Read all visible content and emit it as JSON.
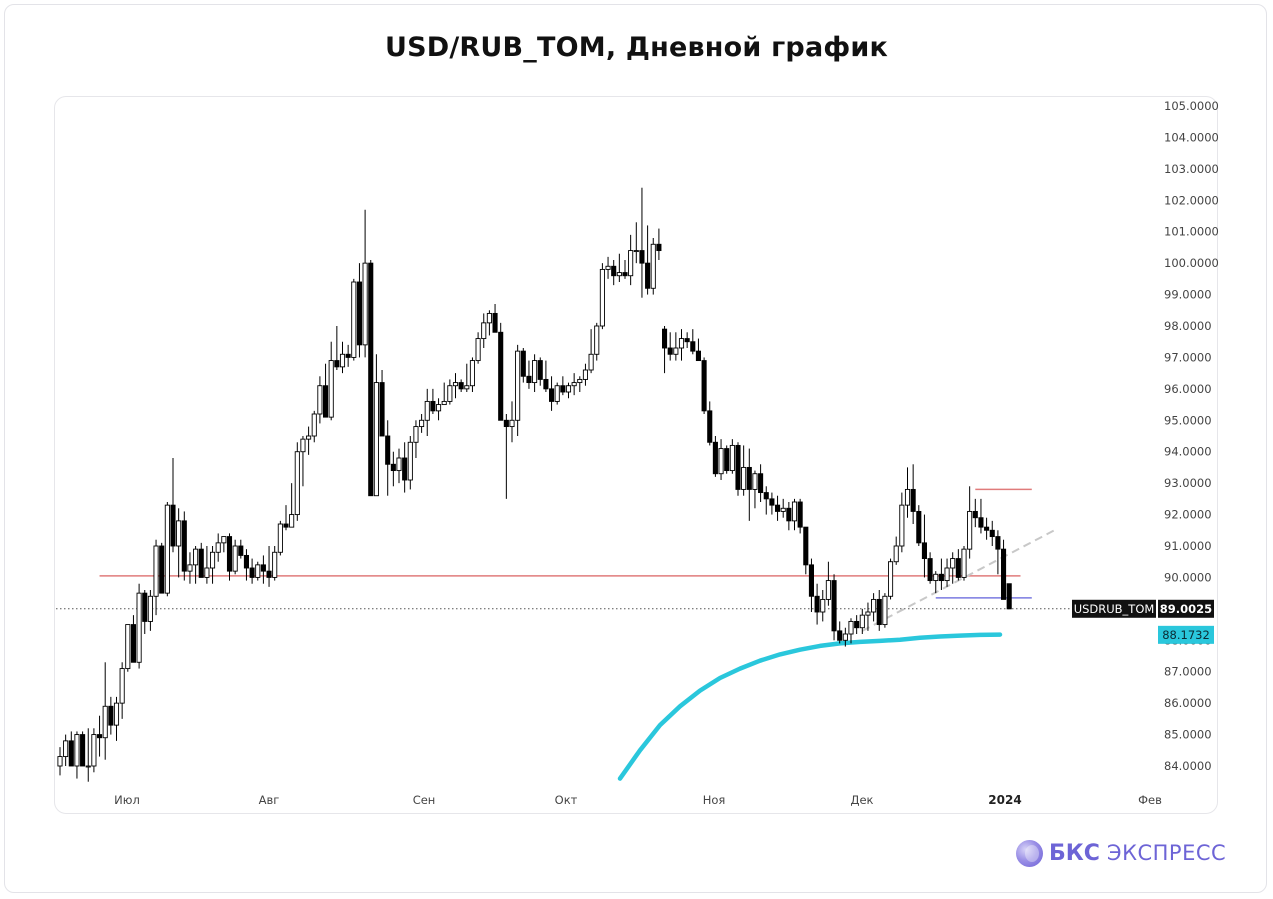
{
  "header": {
    "title": "USD/RUB_TOM, Дневной график"
  },
  "brand": {
    "name_bold": "БКС",
    "name": "ЭКСПРЕСС",
    "logo_icon": "bks-sphere-icon"
  },
  "chart_data": {
    "type": "candlestick",
    "title": "USD/RUB_TOM, Дневной график",
    "ticker": "USDRUB_TOM",
    "y_ticks": [
      "105.0000",
      "104.0000",
      "103.0000",
      "102.0000",
      "101.0000",
      "100.0000",
      "99.0000",
      "98.0000",
      "97.0000",
      "96.0000",
      "95.0000",
      "94.0000",
      "93.0000",
      "92.0000",
      "91.0000",
      "90.0000",
      "89.0000",
      "88.0000",
      "87.0000",
      "86.0000",
      "85.0000",
      "84.0000"
    ],
    "x_ticks": [
      "Июл",
      "Авг",
      "Сен",
      "Окт",
      "Ноя",
      "Дек",
      "2024",
      "Фев"
    ],
    "ylim": [
      83.4,
      105.4
    ],
    "last_price": "89.0025",
    "ma_value": "88.1732",
    "colors": {
      "bull": "#ffffff",
      "bear": "#000000",
      "ma": "#2ac7dc",
      "level": "#e07b7b",
      "range": "#7a7ae0",
      "trend": "#c8c8c8",
      "price_label": "#111111"
    },
    "candles": [
      [
        84.0,
        84.6,
        83.7,
        84.3
      ],
      [
        84.3,
        85.0,
        84.0,
        84.8
      ],
      [
        84.8,
        85.1,
        84.0,
        84.0
      ],
      [
        84.0,
        85.1,
        83.6,
        85.0
      ],
      [
        85.0,
        85.1,
        84.0,
        84.0
      ],
      [
        84.0,
        85.2,
        83.5,
        84.0
      ],
      [
        84.0,
        85.2,
        83.8,
        85.0
      ],
      [
        85.0,
        85.6,
        84.3,
        84.9
      ],
      [
        84.9,
        87.3,
        84.2,
        85.9
      ],
      [
        85.9,
        86.2,
        85.0,
        85.3
      ],
      [
        85.3,
        86.2,
        84.8,
        86.0
      ],
      [
        86.0,
        87.3,
        85.5,
        87.1
      ],
      [
        87.1,
        88.5,
        87.0,
        88.5
      ],
      [
        88.5,
        88.8,
        87.3,
        87.3
      ],
      [
        87.3,
        89.8,
        87.1,
        89.5
      ],
      [
        89.5,
        89.6,
        88.2,
        88.6
      ],
      [
        88.6,
        89.6,
        88.3,
        89.4
      ],
      [
        89.4,
        91.2,
        88.8,
        91.0
      ],
      [
        91.0,
        91.1,
        89.5,
        89.5
      ],
      [
        89.5,
        92.4,
        89.4,
        92.3
      ],
      [
        92.3,
        93.8,
        90.8,
        91.0
      ],
      [
        91.0,
        92.2,
        90.0,
        91.8
      ],
      [
        91.8,
        92.1,
        89.9,
        90.2
      ],
      [
        90.2,
        90.8,
        89.8,
        90.4
      ],
      [
        90.4,
        91.0,
        89.8,
        90.9
      ],
      [
        90.9,
        91.1,
        90.0,
        90.0
      ],
      [
        90.0,
        91.0,
        89.8,
        90.3
      ],
      [
        90.3,
        91.0,
        89.8,
        90.8
      ],
      [
        90.8,
        91.4,
        90.5,
        91.1
      ],
      [
        91.1,
        91.3,
        90.8,
        91.3
      ],
      [
        91.3,
        91.4,
        89.9,
        90.2
      ],
      [
        90.2,
        91.2,
        90.1,
        91.0
      ],
      [
        91.0,
        91.2,
        90.6,
        90.7
      ],
      [
        90.7,
        90.9,
        89.9,
        90.3
      ],
      [
        90.3,
        90.6,
        89.8,
        90.0
      ],
      [
        90.0,
        90.5,
        89.9,
        90.4
      ],
      [
        90.4,
        90.7,
        89.8,
        90.2
      ],
      [
        90.2,
        91.0,
        89.7,
        90.0
      ],
      [
        90.0,
        91.0,
        89.9,
        90.8
      ],
      [
        90.8,
        91.8,
        90.7,
        91.7
      ],
      [
        91.7,
        92.3,
        91.5,
        91.6
      ],
      [
        91.6,
        93.0,
        91.6,
        92.0
      ],
      [
        92.0,
        94.3,
        91.8,
        94.0
      ],
      [
        94.0,
        94.5,
        92.9,
        94.4
      ],
      [
        94.4,
        94.8,
        93.9,
        94.5
      ],
      [
        94.5,
        95.3,
        94.3,
        95.2
      ],
      [
        95.2,
        96.4,
        94.9,
        96.1
      ],
      [
        96.1,
        96.8,
        95.1,
        95.1
      ],
      [
        95.1,
        97.5,
        95.0,
        96.9
      ],
      [
        96.9,
        98.0,
        96.6,
        96.7
      ],
      [
        96.7,
        97.5,
        96.5,
        97.1
      ],
      [
        97.1,
        97.4,
        96.7,
        97.0
      ],
      [
        97.0,
        99.5,
        96.9,
        99.4
      ],
      [
        99.4,
        100.0,
        97.0,
        97.4
      ],
      [
        97.4,
        101.7,
        97.0,
        100.0
      ],
      [
        100.0,
        100.1,
        92.6,
        92.6
      ],
      [
        92.6,
        97.1,
        92.6,
        96.2
      ],
      [
        96.2,
        96.6,
        94.5,
        94.5
      ],
      [
        94.5,
        95.0,
        92.6,
        93.6
      ],
      [
        93.6,
        94.0,
        92.9,
        93.4
      ],
      [
        93.4,
        94.1,
        93.0,
        93.8
      ],
      [
        93.8,
        94.3,
        92.7,
        93.1
      ],
      [
        93.1,
        94.5,
        92.8,
        94.3
      ],
      [
        94.3,
        95.0,
        93.8,
        94.8
      ],
      [
        94.8,
        95.2,
        94.6,
        95.0
      ],
      [
        95.0,
        96.0,
        94.5,
        95.6
      ],
      [
        95.6,
        96.0,
        95.2,
        95.3
      ],
      [
        95.3,
        95.7,
        95.0,
        95.5
      ],
      [
        95.5,
        96.2,
        95.5,
        95.6
      ],
      [
        95.6,
        96.3,
        95.5,
        96.1
      ],
      [
        96.1,
        96.5,
        95.7,
        96.2
      ],
      [
        96.2,
        96.3,
        95.9,
        96.0
      ],
      [
        96.0,
        96.8,
        95.9,
        96.1
      ],
      [
        96.1,
        97.0,
        95.9,
        96.9
      ],
      [
        96.9,
        97.8,
        96.8,
        97.6
      ],
      [
        97.6,
        98.4,
        97.3,
        98.1
      ],
      [
        98.1,
        98.5,
        97.7,
        98.4
      ],
      [
        98.4,
        98.7,
        97.8,
        97.8
      ],
      [
        97.8,
        98.1,
        95.0,
        95.0
      ],
      [
        95.0,
        95.2,
        92.5,
        94.8
      ],
      [
        94.8,
        95.6,
        94.3,
        95.0
      ],
      [
        95.0,
        97.4,
        94.5,
        97.2
      ],
      [
        97.2,
        97.3,
        96.2,
        96.4
      ],
      [
        96.4,
        96.9,
        96.0,
        96.2
      ],
      [
        96.2,
        97.1,
        95.9,
        96.9
      ],
      [
        96.9,
        97.0,
        96.1,
        96.3
      ],
      [
        96.3,
        96.9,
        95.9,
        96.0
      ],
      [
        96.0,
        96.4,
        95.3,
        95.6
      ],
      [
        95.6,
        96.2,
        95.5,
        96.1
      ],
      [
        96.1,
        96.4,
        95.8,
        95.9
      ],
      [
        95.9,
        96.2,
        95.7,
        96.1
      ],
      [
        96.1,
        96.5,
        95.8,
        96.2
      ],
      [
        96.2,
        96.4,
        95.9,
        96.3
      ],
      [
        96.3,
        96.8,
        96.1,
        96.6
      ],
      [
        96.6,
        97.9,
        96.5,
        97.1
      ],
      [
        97.1,
        98.1,
        96.9,
        98.0
      ],
      [
        98.0,
        100.0,
        97.9,
        99.8
      ],
      [
        99.8,
        100.2,
        99.5,
        99.9
      ],
      [
        99.9,
        100.1,
        99.3,
        99.6
      ],
      [
        99.6,
        100.3,
        99.4,
        99.7
      ],
      [
        99.7,
        100.1,
        99.5,
        99.6
      ],
      [
        99.6,
        100.9,
        99.3,
        100.4
      ],
      [
        100.4,
        101.3,
        100.0,
        100.4
      ],
      [
        100.4,
        102.4,
        98.9,
        100.0
      ],
      [
        100.0,
        101.2,
        99.0,
        99.2
      ],
      [
        99.2,
        100.8,
        99.0,
        100.6
      ],
      [
        100.6,
        101.1,
        100.1,
        100.4
      ],
      [
        97.9,
        98.0,
        96.5,
        97.3
      ],
      [
        97.3,
        97.8,
        96.9,
        97.1
      ],
      [
        97.1,
        97.8,
        96.9,
        97.3
      ],
      [
        97.3,
        97.9,
        96.9,
        97.6
      ],
      [
        97.6,
        97.8,
        97.3,
        97.5
      ],
      [
        97.5,
        97.9,
        97.1,
        97.2
      ],
      [
        97.2,
        97.6,
        96.9,
        96.9
      ],
      [
        96.9,
        97.0,
        95.2,
        95.3
      ],
      [
        95.3,
        95.6,
        94.2,
        94.3
      ],
      [
        94.3,
        94.5,
        93.2,
        93.3
      ],
      [
        93.3,
        94.4,
        93.1,
        94.1
      ],
      [
        94.1,
        94.2,
        93.3,
        93.4
      ],
      [
        93.4,
        94.4,
        93.3,
        94.2
      ],
      [
        94.2,
        94.3,
        92.6,
        92.8
      ],
      [
        92.8,
        94.2,
        92.6,
        93.5
      ],
      [
        93.5,
        94.1,
        91.8,
        92.8
      ],
      [
        92.8,
        93.4,
        92.2,
        93.3
      ],
      [
        93.3,
        93.6,
        92.4,
        92.7
      ],
      [
        92.7,
        92.9,
        92.0,
        92.5
      ],
      [
        92.5,
        92.7,
        92.0,
        92.3
      ],
      [
        92.3,
        92.6,
        91.8,
        92.1
      ],
      [
        92.1,
        92.5,
        91.9,
        92.2
      ],
      [
        92.2,
        92.4,
        91.5,
        91.8
      ],
      [
        91.8,
        92.5,
        91.5,
        92.4
      ],
      [
        92.4,
        92.5,
        91.4,
        91.6
      ],
      [
        91.6,
        91.6,
        90.1,
        90.4
      ],
      [
        90.4,
        90.6,
        88.9,
        89.4
      ],
      [
        89.4,
        89.8,
        88.5,
        88.9
      ],
      [
        88.9,
        89.6,
        88.6,
        89.3
      ],
      [
        89.3,
        90.5,
        89.1,
        89.9
      ],
      [
        89.9,
        90.1,
        88.0,
        88.3
      ],
      [
        88.3,
        88.6,
        87.9,
        88.0
      ],
      [
        88.0,
        88.4,
        87.8,
        88.2
      ],
      [
        88.2,
        88.7,
        87.9,
        88.6
      ],
      [
        88.6,
        88.8,
        88.2,
        88.4
      ],
      [
        88.4,
        89.0,
        88.2,
        88.8
      ],
      [
        88.8,
        89.2,
        88.3,
        88.9
      ],
      [
        88.9,
        89.5,
        88.6,
        89.3
      ],
      [
        89.3,
        89.6,
        88.3,
        88.5
      ],
      [
        88.5,
        89.5,
        88.4,
        89.4
      ],
      [
        89.4,
        90.6,
        89.3,
        90.5
      ],
      [
        90.5,
        91.3,
        90.4,
        91.0
      ],
      [
        91.0,
        92.7,
        90.8,
        92.3
      ],
      [
        92.3,
        93.5,
        91.9,
        92.8
      ],
      [
        92.8,
        93.6,
        91.7,
        92.1
      ],
      [
        92.1,
        92.3,
        91.0,
        91.1
      ],
      [
        91.1,
        92.0,
        90.0,
        90.6
      ],
      [
        90.6,
        90.8,
        89.8,
        89.9
      ],
      [
        89.9,
        90.2,
        89.5,
        90.1
      ],
      [
        90.1,
        90.6,
        89.6,
        89.9
      ],
      [
        89.9,
        90.6,
        89.7,
        90.3
      ],
      [
        90.3,
        90.8,
        89.8,
        90.6
      ],
      [
        90.6,
        90.9,
        89.9,
        90.0
      ],
      [
        90.0,
        91.0,
        89.9,
        90.9
      ],
      [
        90.9,
        92.9,
        90.6,
        92.1
      ],
      [
        92.1,
        92.5,
        91.6,
        91.9
      ],
      [
        91.9,
        92.5,
        91.4,
        91.6
      ],
      [
        91.6,
        91.9,
        91.2,
        91.5
      ],
      [
        91.5,
        91.8,
        91.0,
        91.3
      ],
      [
        91.3,
        91.5,
        90.1,
        90.9
      ],
      [
        90.9,
        91.2,
        89.3,
        89.3
      ],
      [
        89.8,
        89.8,
        89.0,
        89.0
      ]
    ],
    "ma200": [
      [
        56,
        83.6
      ],
      [
        58,
        84.5
      ],
      [
        60,
        85.3
      ],
      [
        62,
        85.9
      ],
      [
        64,
        86.4
      ],
      [
        66,
        86.8
      ],
      [
        68,
        87.1
      ],
      [
        70,
        87.35
      ],
      [
        72,
        87.55
      ],
      [
        74,
        87.7
      ],
      [
        76,
        87.82
      ],
      [
        78,
        87.9
      ],
      [
        80,
        87.95
      ],
      [
        82,
        87.98
      ],
      [
        84,
        88.02
      ],
      [
        86,
        88.08
      ],
      [
        88,
        88.12
      ],
      [
        90,
        88.15
      ],
      [
        92,
        88.17
      ],
      [
        94,
        88.18
      ]
    ],
    "levels": [
      {
        "type": "horizontal",
        "price": 90.05,
        "from": 7,
        "to": 170,
        "color": "#e07b7b"
      },
      {
        "type": "horizontal",
        "price": 92.8,
        "from": 162,
        "to": 172,
        "color": "#e07b7b"
      },
      {
        "type": "horizontal",
        "price": 89.35,
        "from": 155,
        "to": 172,
        "color": "#7a7ae0"
      }
    ],
    "trendline": {
      "from": [
        142,
        88.3
      ],
      "to": [
        176,
        91.5
      ],
      "style": "dashed"
    }
  }
}
